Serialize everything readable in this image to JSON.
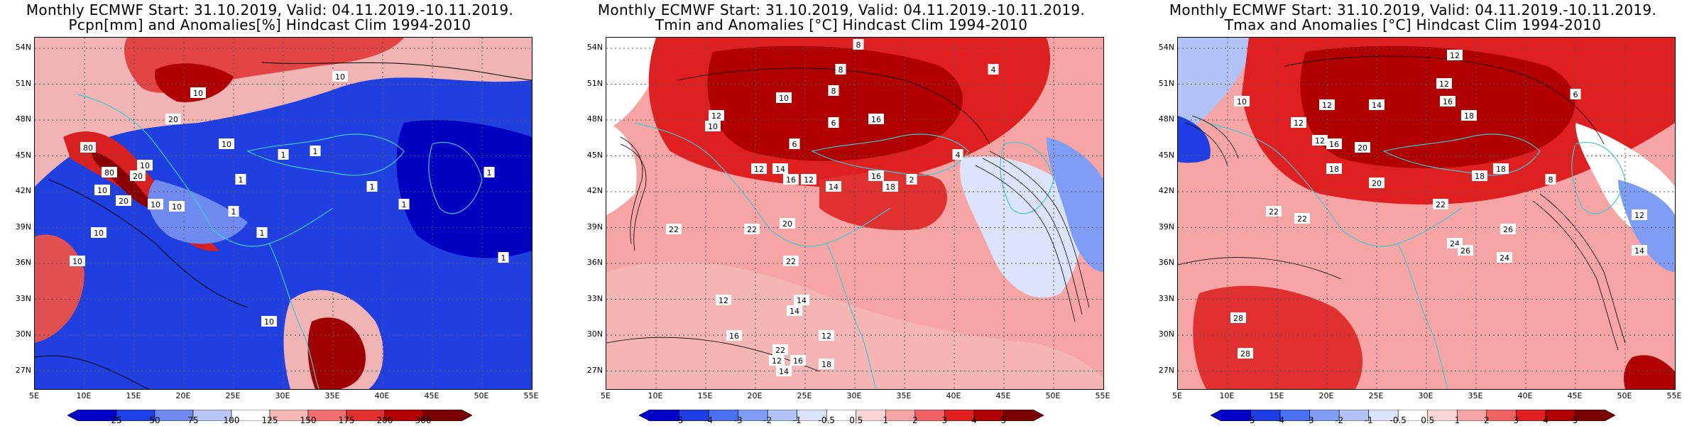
{
  "panels": [
    {
      "title_line1": "Monthly ECMWF Start: 31.10.2019, Valid: 04.11.2019.-10.11.2019.",
      "title_line2": "Pcpn[mm] and Anomalies[%] Hindcast Clim 1994-2010",
      "colorbar_labels": [
        "25",
        "50",
        "75",
        "100",
        "125",
        "150",
        "175",
        "200",
        "300"
      ],
      "colorbar_colors": [
        "#0000c8",
        "#2040e8",
        "#6f8bf0",
        "#b9c6f6",
        "#ffffff",
        "#f6b7b7",
        "#f07070",
        "#e03030",
        "#b40000",
        "#7a0000"
      ],
      "contour_labels": [
        "10",
        "10",
        "10",
        "20",
        "1",
        "1",
        "1",
        "1",
        "1",
        "1",
        "10",
        "10",
        "10",
        "80",
        "80",
        "10",
        "20",
        "10",
        "20",
        "10",
        "10",
        "1",
        "1",
        "1"
      ]
    },
    {
      "title_line1": "Monthly ECMWF Start: 31.10.2019, Valid: 04.11.2019.-10.11.2019.",
      "title_line2": "Tmin and Anomalies [°C] Hindcast Clim 1994-2010",
      "colorbar_labels": [
        "-5",
        "-4",
        "-3",
        "-2",
        "-1",
        "-0.5",
        "0.5",
        "1",
        "2",
        "3",
        "4",
        "5"
      ],
      "colorbar_colors": [
        "#0000c8",
        "#1f3ee6",
        "#4a6ff0",
        "#7f9df4",
        "#b2c3f7",
        "#dce4fb",
        "#ffffff",
        "#fbd6d6",
        "#f6a4a4",
        "#ef6262",
        "#e02020",
        "#b00000",
        "#7a0000"
      ],
      "contour_labels": [
        "8",
        "4",
        "8",
        "8",
        "10",
        "12",
        "16",
        "6",
        "6",
        "10",
        "12",
        "14",
        "16",
        "12",
        "16",
        "14",
        "18",
        "22",
        "20",
        "22",
        "22",
        "12",
        "14",
        "16",
        "22",
        "14",
        "12",
        "18",
        "16",
        "12",
        "14",
        "2",
        "4"
      ]
    },
    {
      "title_line1": "Monthly ECMWF Start: 31.10.2019, Valid: 04.11.2019.-10.11.2019.",
      "title_line2": "Tmax and Anomalies [°C] Hindcast Clim 1994-2010",
      "colorbar_labels": [
        "-5",
        "-4",
        "-3",
        "-2",
        "-1",
        "-0.5",
        "0.5",
        "1",
        "2",
        "3",
        "4",
        "5"
      ],
      "colorbar_colors": [
        "#0000c8",
        "#1f3ee6",
        "#4a6ff0",
        "#7f9df4",
        "#b2c3f7",
        "#dce4fb",
        "#ffffff",
        "#fbd6d6",
        "#f6a4a4",
        "#ef6262",
        "#e02020",
        "#b00000",
        "#7a0000"
      ],
      "contour_labels": [
        "10",
        "12",
        "12",
        "12",
        "16",
        "14",
        "18",
        "12",
        "12",
        "16",
        "20",
        "18",
        "20",
        "18",
        "18",
        "22",
        "22",
        "26",
        "24",
        "24",
        "26",
        "28",
        "28",
        "22",
        "12",
        "14",
        "6",
        "8"
      ]
    }
  ],
  "axes": {
    "lat_labels": [
      "54N",
      "51N",
      "48N",
      "45N",
      "42N",
      "39N",
      "36N",
      "33N",
      "30N",
      "27N"
    ],
    "lon_labels": [
      "5E",
      "10E",
      "15E",
      "20E",
      "25E",
      "30E",
      "35E",
      "40E",
      "45E",
      "50E",
      "55E"
    ]
  }
}
